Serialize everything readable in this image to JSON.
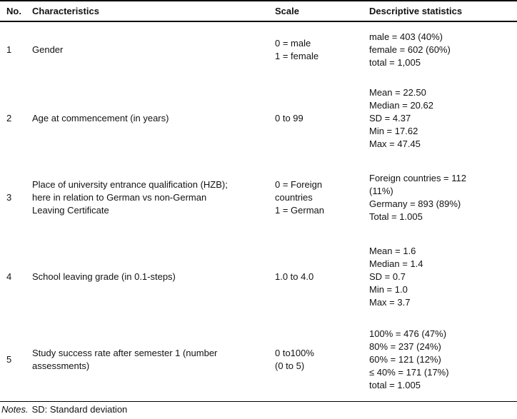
{
  "table": {
    "headers": {
      "no": "No.",
      "characteristics": "Characteristics",
      "scale": "Scale",
      "stats": "Descriptive statistics"
    },
    "rows": [
      {
        "no": "1",
        "characteristics": "Gender",
        "scale": "0 = male\n1 = female",
        "stats": "male = 403 (40%)\nfemale = 602 (60%)\ntotal = 1,005"
      },
      {
        "no": "2",
        "characteristics": "Age at commencement (in years)",
        "scale": "0 to 99",
        "stats": "Mean = 22.50\nMedian = 20.62\nSD = 4.37\nMin = 17.62\nMax = 47.45"
      },
      {
        "no": "3",
        "characteristics": "Place of university entrance qualification (HZB);\nhere in relation to German vs non-German\nLeaving Certificate",
        "scale": "0 = Foreign\ncountries\n1 = German",
        "stats": "Foreign countries = 112\n(11%)\nGermany = 893 (89%)\nTotal = 1.005"
      },
      {
        "no": "4",
        "characteristics": "School leaving grade (in 0.1-steps)",
        "scale": "1.0 to 4.0",
        "stats": "Mean = 1.6\nMedian = 1.4\nSD = 0.7\nMin = 1.0\nMax = 3.7"
      },
      {
        "no": "5",
        "characteristics": "Study success rate after semester 1 (number\nassessments)",
        "scale": "0 to100%\n(0 to 5)",
        "stats": "100% = 476 (47%)\n80% = 237 (24%)\n60% = 121 (12%)\n≤ 40% = 171 (17%)\ntotal = 1.005"
      }
    ]
  },
  "notes": {
    "label": "Notes.",
    "text": "SD: Standard deviation"
  },
  "colors": {
    "text": "#121212",
    "border": "#000000",
    "background": "#ffffff"
  }
}
